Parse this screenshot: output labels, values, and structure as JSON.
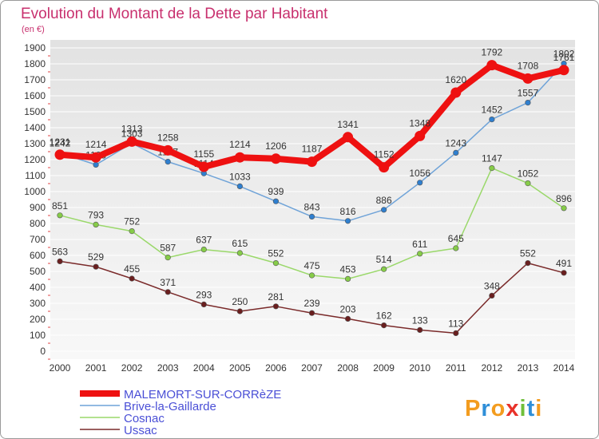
{
  "chart_data": {
    "type": "line",
    "title": "Evolution du Montant de la Dette par Habitant",
    "subtitle": "(en €)",
    "xlabel": "",
    "ylabel": "",
    "x": [
      "2000",
      "2001",
      "2002",
      "2003",
      "2004",
      "2005",
      "2006",
      "2007",
      "2008",
      "2009",
      "2010",
      "2011",
      "2012",
      "2013",
      "2014"
    ],
    "ylim": [
      0,
      1900
    ],
    "yticks": [
      0,
      100,
      200,
      300,
      400,
      500,
      600,
      700,
      800,
      900,
      1000,
      1100,
      1200,
      1300,
      1400,
      1500,
      1600,
      1700,
      1800,
      1900
    ],
    "grid": true,
    "legend": "bottom-left",
    "series": [
      {
        "name": "MALEMORT-SUR-CORRèZE",
        "color": "#ee1111",
        "marker": "#ee1111",
        "values": [
          1231,
          1214,
          1313,
          1258,
          1155,
          1214,
          1206,
          1187,
          1341,
          1152,
          1348,
          1620,
          1792,
          1708,
          1761
        ]
      },
      {
        "name": "Brive-la-Gaillarde",
        "color": "#6fa3d8",
        "marker": "#2f7fcf",
        "values": [
          1242,
          1168,
          1303,
          1187,
          1114,
          1033,
          939,
          843,
          816,
          886,
          1056,
          1243,
          1452,
          1557,
          1802
        ]
      },
      {
        "name": "Cosnac",
        "color": "#9ad86a",
        "marker": "#86cc48",
        "values": [
          851,
          793,
          752,
          587,
          637,
          615,
          552,
          475,
          453,
          514,
          611,
          645,
          1147,
          1052,
          896
        ]
      },
      {
        "name": "Ussac",
        "color": "#7a2a2a",
        "marker": "#6a1f1f",
        "values": [
          563,
          529,
          455,
          371,
          293,
          250,
          281,
          239,
          203,
          162,
          133,
          113,
          348,
          552,
          491
        ]
      }
    ]
  },
  "logo": {
    "text": "Proxiti",
    "colors": [
      "#f39c1f",
      "#2f8fd8",
      "#f39c1f",
      "#e8322a",
      "#6fbf3a",
      "#2f8fd8",
      "#f39c1f"
    ]
  }
}
